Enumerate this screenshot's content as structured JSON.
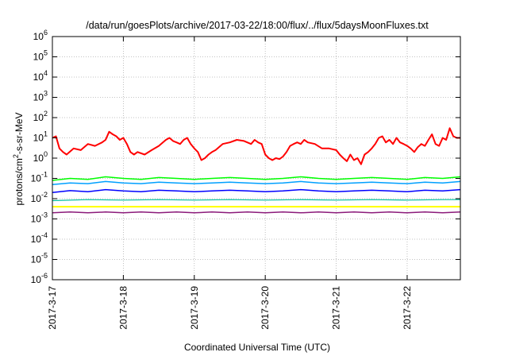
{
  "chart_data": {
    "type": "line",
    "title": "/data/run/goesPlots/archive/2017-03-22/18:00/flux/../flux/5daysMoonFluxes.txt",
    "xlabel": "Coordinated Universal Time (UTC)",
    "ylabel": {
      "base": "protons/cm",
      "sup": "2",
      "rest": "-s-sr-MeV"
    },
    "x_ticks": [
      "2017-3-17",
      "2017-3-18",
      "2017-3-19",
      "2017-3-20",
      "2017-3-21",
      "2017-3-22"
    ],
    "x_tick_days": [
      0,
      1,
      2,
      3,
      4,
      5
    ],
    "xlim_days": [
      0,
      5.75
    ],
    "y_scale": "log",
    "ylim": [
      1e-06,
      1000000.0
    ],
    "y_ticks": [
      {
        "base": "10",
        "exp": "6",
        "value": 1000000.0
      },
      {
        "base": "10",
        "exp": "5",
        "value": 100000.0
      },
      {
        "base": "10",
        "exp": "4",
        "value": 10000.0
      },
      {
        "base": "10",
        "exp": "3",
        "value": 1000.0
      },
      {
        "base": "10",
        "exp": "2",
        "value": 100.0
      },
      {
        "base": "10",
        "exp": "1",
        "value": 10.0
      },
      {
        "base": "10",
        "exp": "0",
        "value": 1
      },
      {
        "base": "10",
        "exp": "-1",
        "value": 0.1
      },
      {
        "base": "10",
        "exp": "-2",
        "value": 0.01
      },
      {
        "base": "10",
        "exp": "-3",
        "value": 0.001
      },
      {
        "base": "10",
        "exp": "-4",
        "value": 0.0001
      },
      {
        "base": "10",
        "exp": "-5",
        "value": 1e-05
      },
      {
        "base": "10",
        "exp": "-6",
        "value": 1e-06
      }
    ],
    "grid": true,
    "series": [
      {
        "color": "#ff0000",
        "width": 2.0,
        "x": [
          0,
          0.05,
          0.1,
          0.15,
          0.2,
          0.3,
          0.4,
          0.5,
          0.6,
          0.7,
          0.75,
          0.8,
          0.85,
          0.9,
          0.95,
          1.0,
          1.05,
          1.1,
          1.15,
          1.2,
          1.3,
          1.4,
          1.5,
          1.6,
          1.65,
          1.7,
          1.75,
          1.8,
          1.85,
          1.9,
          1.95,
          2.0,
          2.05,
          2.1,
          2.15,
          2.2,
          2.25,
          2.3,
          2.4,
          2.5,
          2.6,
          2.7,
          2.8,
          2.85,
          2.9,
          2.95,
          3.0,
          3.05,
          3.1,
          3.15,
          3.2,
          3.25,
          3.3,
          3.35,
          3.4,
          3.45,
          3.5,
          3.55,
          3.6,
          3.7,
          3.8,
          3.9,
          4.0,
          4.05,
          4.1,
          4.15,
          4.2,
          4.25,
          4.3,
          4.35,
          4.4,
          4.45,
          4.5,
          4.55,
          4.6,
          4.65,
          4.7,
          4.75,
          4.8,
          4.85,
          4.9,
          4.95,
          5.0,
          5.05,
          5.1,
          5.15,
          5.2,
          5.25,
          5.3,
          5.35,
          5.4,
          5.45,
          5.5,
          5.55,
          5.6,
          5.65,
          5.7,
          5.75
        ],
        "y": [
          10,
          12,
          3,
          2,
          1.5,
          3,
          2.5,
          5,
          4,
          6,
          8,
          20,
          15,
          12,
          8,
          10,
          5,
          2,
          1.5,
          2,
          1.5,
          2.5,
          4,
          8,
          10,
          7,
          6,
          5,
          8,
          10,
          5,
          3,
          2,
          0.8,
          1,
          1.5,
          2,
          2.5,
          5,
          6,
          8,
          7,
          5,
          8,
          6,
          5,
          1.5,
          1,
          0.8,
          1,
          0.9,
          1.2,
          2,
          4,
          5,
          6,
          5,
          8,
          6,
          5,
          3,
          3,
          2.5,
          1.5,
          1,
          0.7,
          1.5,
          0.8,
          1,
          0.5,
          1.5,
          2,
          3,
          5,
          10,
          12,
          6,
          8,
          5,
          10,
          6,
          5,
          4,
          3,
          2,
          3.5,
          5,
          4,
          8,
          15,
          5,
          4,
          10,
          8,
          30,
          12,
          10,
          10
        ]
      },
      {
        "color": "#00ff00",
        "width": 1.5,
        "x": [
          0,
          0.25,
          0.5,
          0.75,
          1.0,
          1.25,
          1.5,
          1.75,
          2.0,
          2.25,
          2.5,
          2.75,
          3.0,
          3.25,
          3.5,
          3.75,
          4.0,
          4.25,
          4.5,
          4.75,
          5.0,
          5.25,
          5.5,
          5.75
        ],
        "y": [
          0.08,
          0.1,
          0.09,
          0.12,
          0.1,
          0.09,
          0.11,
          0.1,
          0.09,
          0.1,
          0.11,
          0.1,
          0.09,
          0.1,
          0.12,
          0.1,
          0.09,
          0.1,
          0.11,
          0.1,
          0.09,
          0.11,
          0.1,
          0.12
        ]
      },
      {
        "color": "#00a0ff",
        "width": 1.5,
        "x": [
          0,
          0.25,
          0.5,
          0.75,
          1.0,
          1.25,
          1.5,
          1.75,
          2.0,
          2.25,
          2.5,
          2.75,
          3.0,
          3.25,
          3.5,
          3.75,
          4.0,
          4.25,
          4.5,
          4.75,
          5.0,
          5.25,
          5.5,
          5.75
        ],
        "y": [
          0.05,
          0.06,
          0.055,
          0.07,
          0.06,
          0.055,
          0.065,
          0.06,
          0.055,
          0.06,
          0.065,
          0.06,
          0.055,
          0.06,
          0.07,
          0.06,
          0.055,
          0.06,
          0.065,
          0.06,
          0.055,
          0.065,
          0.06,
          0.07
        ]
      },
      {
        "color": "#0000ff",
        "width": 1.5,
        "x": [
          0,
          0.25,
          0.5,
          0.75,
          1.0,
          1.25,
          1.5,
          1.75,
          2.0,
          2.25,
          2.5,
          2.75,
          3.0,
          3.25,
          3.5,
          3.75,
          4.0,
          4.25,
          4.5,
          4.75,
          5.0,
          5.25,
          5.5,
          5.75
        ],
        "y": [
          0.02,
          0.025,
          0.022,
          0.028,
          0.024,
          0.022,
          0.026,
          0.024,
          0.022,
          0.024,
          0.026,
          0.024,
          0.022,
          0.024,
          0.028,
          0.024,
          0.022,
          0.024,
          0.026,
          0.024,
          0.022,
          0.026,
          0.024,
          0.028
        ]
      },
      {
        "color": "#00c0a0",
        "width": 1.2,
        "x": [
          0,
          0.5,
          1.0,
          1.5,
          2.0,
          2.5,
          3.0,
          3.5,
          4.0,
          4.5,
          5.0,
          5.5,
          5.75
        ],
        "y": [
          0.008,
          0.009,
          0.0085,
          0.009,
          0.0085,
          0.009,
          0.0085,
          0.009,
          0.0085,
          0.009,
          0.0085,
          0.009,
          0.009
        ]
      },
      {
        "color": "#ffff00",
        "width": 2.0,
        "x": [
          0,
          0.5,
          1.0,
          1.5,
          2.0,
          2.5,
          3.0,
          3.5,
          4.0,
          4.5,
          5.0,
          5.5,
          5.75
        ],
        "y": [
          0.004,
          0.004,
          0.004,
          0.004,
          0.004,
          0.004,
          0.004,
          0.004,
          0.004,
          0.004,
          0.004,
          0.004,
          0.004
        ]
      },
      {
        "color": "#8b1a7a",
        "width": 1.5,
        "x": [
          0,
          0.25,
          0.5,
          0.75,
          1.0,
          1.25,
          1.5,
          1.75,
          2.0,
          2.25,
          2.5,
          2.75,
          3.0,
          3.25,
          3.5,
          3.75,
          4.0,
          4.25,
          4.5,
          4.75,
          5.0,
          5.25,
          5.5,
          5.75
        ],
        "y": [
          0.002,
          0.0022,
          0.002,
          0.0022,
          0.002,
          0.0022,
          0.002,
          0.0022,
          0.002,
          0.0022,
          0.002,
          0.0022,
          0.002,
          0.0022,
          0.002,
          0.0022,
          0.002,
          0.0022,
          0.002,
          0.0022,
          0.002,
          0.0022,
          0.002,
          0.0022
        ]
      }
    ]
  }
}
